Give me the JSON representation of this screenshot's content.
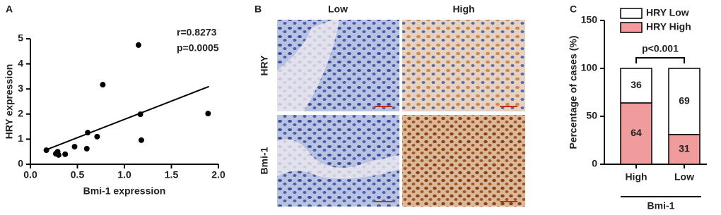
{
  "chart_data": [
    {
      "type": "scatter",
      "panel_label": "A",
      "x_label": "Bmi-1 expression",
      "y_label": "HRY expression",
      "annotations": [
        "r=0.8273",
        "p=0.0005"
      ],
      "x": [
        0.17,
        0.27,
        0.29,
        0.3,
        0.37,
        0.47,
        0.61,
        0.6,
        0.71,
        0.77,
        1.15,
        1.17,
        1.18,
        1.89
      ],
      "values": [
        0.56,
        0.42,
        0.5,
        0.37,
        0.4,
        0.7,
        1.26,
        0.62,
        1.1,
        3.17,
        4.75,
        1.99,
        0.96,
        2.02
      ],
      "trendline": {
        "x": [
          0.15,
          1.9
        ],
        "values": [
          0.55,
          3.1
        ]
      },
      "color": "#000000",
      "xlim": [
        0,
        2
      ],
      "xticks": [
        {
          "value": 0,
          "label": "0.0"
        },
        0.5,
        {
          "value": 1,
          "label": "1.0"
        },
        1.5,
        {
          "value": 2,
          "label": "2.0"
        }
      ],
      "ylim": [
        0,
        5
      ],
      "yticks": [
        0,
        1,
        2,
        3,
        4,
        5
      ]
    },
    {
      "type": "image",
      "panel_label": "B",
      "columns": [
        "Low",
        "High"
      ],
      "rows": [
        "HRY",
        "Bmi-1"
      ]
    },
    {
      "type": "stacked_bar",
      "panel_label": "C",
      "y_label": "Percentage of cases (%)",
      "x_label": "Bmi-1",
      "annotation": "p<0.001",
      "categories": [
        "High",
        "Low"
      ],
      "series": [
        {
          "name": "HRY High",
          "color": "#f19c9c",
          "values": [
            64,
            31
          ]
        },
        {
          "name": "HRY Low",
          "color": "#ffffff",
          "values": [
            36,
            69
          ]
        }
      ],
      "ylim": [
        0,
        150
      ],
      "yticks": [
        0,
        50,
        100,
        150
      ]
    }
  ]
}
